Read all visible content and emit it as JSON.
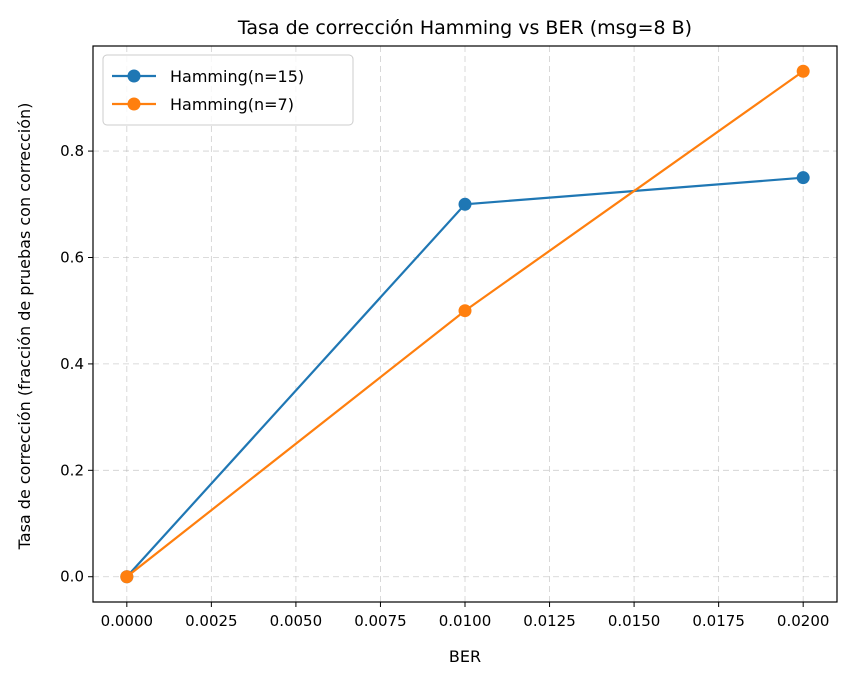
{
  "chart_data": {
    "type": "line",
    "title": "Tasa de corrección Hamming vs BER (msg=8 B)",
    "xlabel": "BER",
    "ylabel": "Tasa de corrección (fracción de pruebas con corrección)",
    "xlim": [
      -0.001,
      0.021
    ],
    "ylim": [
      -0.0475,
      0.9975
    ],
    "xticks": [
      0.0,
      0.0025,
      0.005,
      0.0075,
      0.01,
      0.0125,
      0.015,
      0.0175,
      0.02
    ],
    "xtick_labels": [
      "0.0000",
      "0.0025",
      "0.0050",
      "0.0075",
      "0.0100",
      "0.0125",
      "0.0150",
      "0.0175",
      "0.0200"
    ],
    "yticks": [
      0.0,
      0.2,
      0.4,
      0.6,
      0.8
    ],
    "ytick_labels": [
      "0.0",
      "0.2",
      "0.4",
      "0.6",
      "0.8"
    ],
    "grid": true,
    "legend_position": "top-left",
    "x": [
      0.0,
      0.01,
      0.02
    ],
    "series": [
      {
        "name": "Hamming(n=15)",
        "color": "#1f77b4",
        "values": [
          0.0,
          0.7,
          0.75
        ]
      },
      {
        "name": "Hamming(n=7)",
        "color": "#ff7f0e",
        "values": [
          0.0,
          0.5,
          0.95
        ]
      }
    ]
  }
}
